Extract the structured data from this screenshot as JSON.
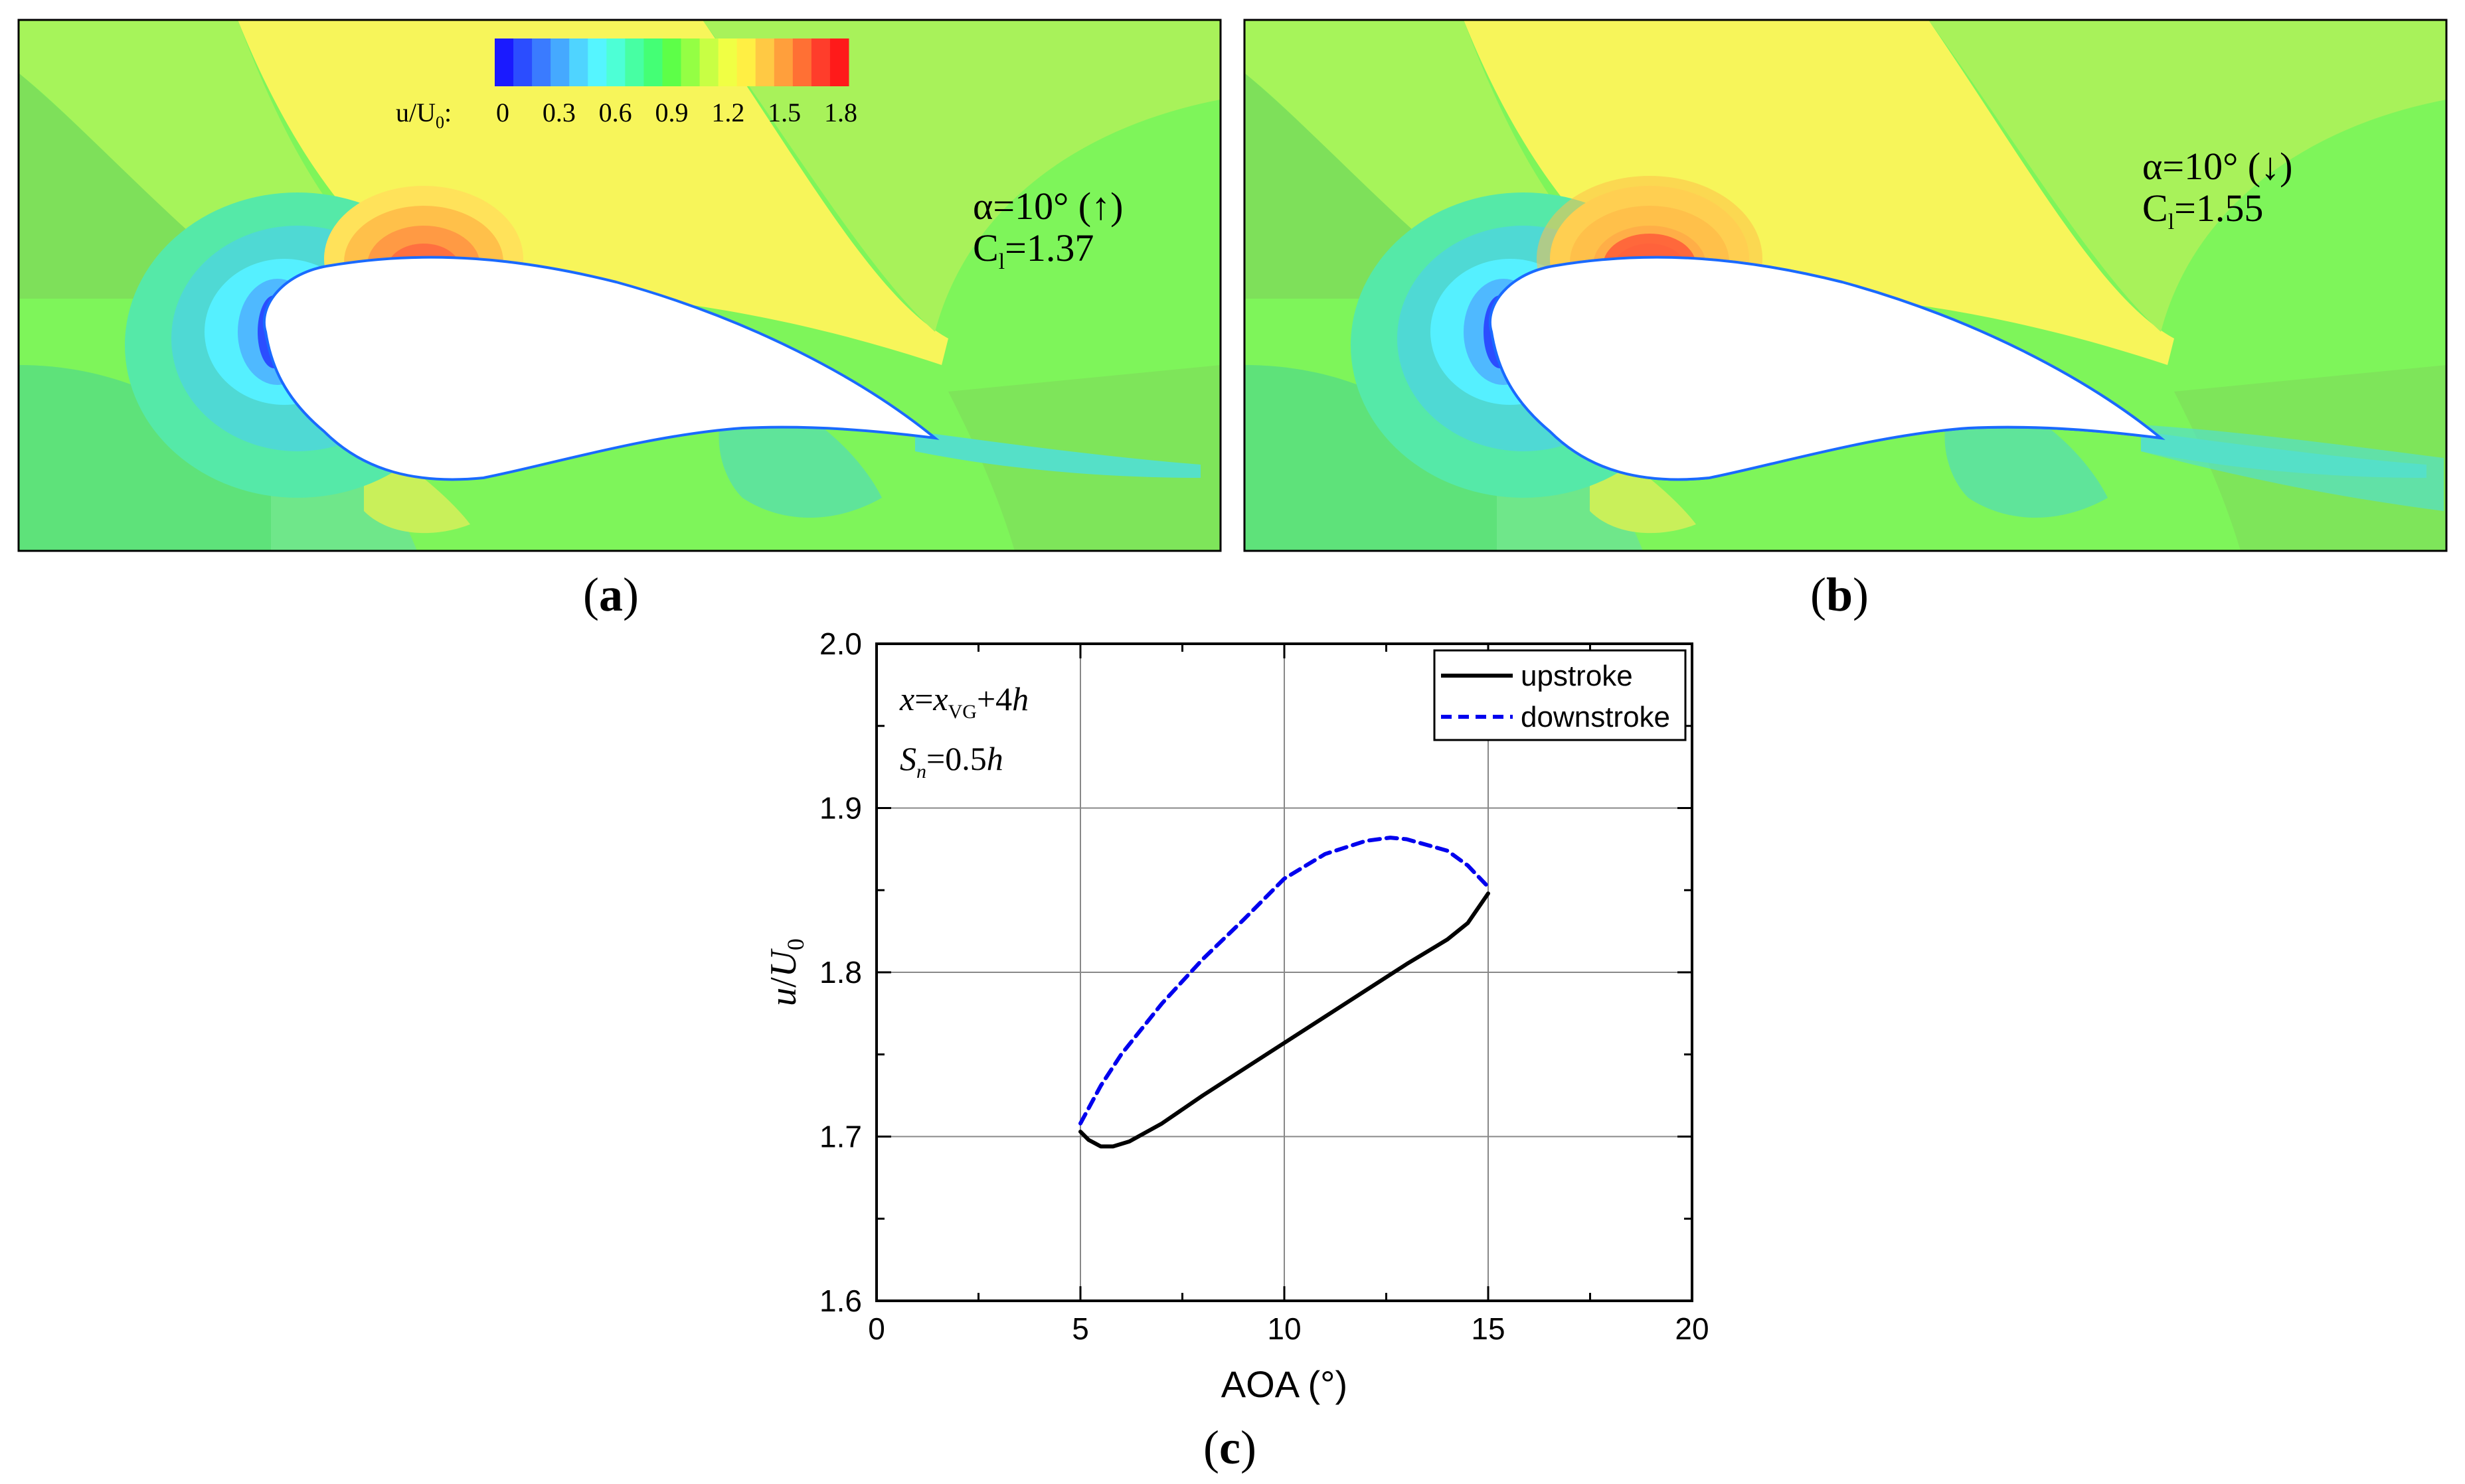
{
  "panel_a": {
    "caption_open": "(",
    "caption_letter": "a",
    "caption_close": ")",
    "alpha_label": "α=10° (↑)",
    "cl_prefix": "C",
    "cl_sub": "l",
    "cl_value": "=1.37"
  },
  "panel_b": {
    "caption_open": "(",
    "caption_letter": "b",
    "caption_close": ")",
    "alpha_label": "α=10° (↓)",
    "cl_prefix": "C",
    "cl_sub": "l",
    "cl_value": "=1.55"
  },
  "panel_c": {
    "caption_open": "(",
    "caption_letter": "c",
    "caption_close": ")"
  },
  "colorbar": {
    "label_main": "u/U",
    "label_sub": "0",
    "label_colon": ":",
    "ticks": [
      "0",
      "0.3",
      "0.6",
      "0.9",
      "1.2",
      "1.5",
      "1.8"
    ],
    "colors": [
      "#1a1aff",
      "#2b4dff",
      "#3a7bff",
      "#45a9ff",
      "#4fd4ff",
      "#55f5ff",
      "#4dffd6",
      "#47ffa3",
      "#44ff75",
      "#5dff48",
      "#94ff44",
      "#c8ff44",
      "#f0ff44",
      "#ffef44",
      "#ffc944",
      "#ff9f3c",
      "#ff7034",
      "#ff3d2b",
      "#ff1a1a"
    ]
  },
  "chart_data": {
    "type": "line",
    "x": {
      "label": "AOA (°)",
      "lim": [
        0,
        20
      ],
      "ticks": [
        0,
        5,
        10,
        15,
        20
      ]
    },
    "y": {
      "label_italic": "u",
      "label_mid": "/",
      "label_italic2": "U",
      "label_sub": "0",
      "lim": [
        1.6,
        2.0
      ],
      "ticks": [
        1.6,
        1.7,
        1.8,
        1.9,
        2.0
      ],
      "tick_labels": [
        "1.6",
        "1.7",
        "1.8",
        "1.9",
        "2.0"
      ]
    },
    "grid_x": [
      5,
      10,
      15
    ],
    "grid_y": [
      1.7,
      1.8,
      1.9
    ],
    "annotation": {
      "line1_x": "x",
      "line1_eq": "=",
      "line1_xvg": "x",
      "line1_vg_sub": "VG",
      "line1_rest": "+4",
      "line1_h": "h",
      "line2_s": "S",
      "line2_n": "n",
      "line2_rest": "=0.5",
      "line2_h": "h"
    },
    "legend_position": "top-right",
    "series": [
      {
        "name": "upstroke",
        "style": "solid",
        "color": "#000000",
        "x": [
          5.0,
          5.2,
          5.5,
          5.8,
          6.2,
          7.0,
          8.0,
          9.0,
          10.0,
          11.0,
          12.0,
          13.0,
          14.0,
          14.5,
          15.0
        ],
        "y": [
          1.703,
          1.698,
          1.694,
          1.694,
          1.697,
          1.708,
          1.725,
          1.741,
          1.757,
          1.773,
          1.789,
          1.805,
          1.82,
          1.83,
          1.848
        ]
      },
      {
        "name": "downstroke",
        "style": "dashed",
        "color": "#0000ee",
        "x": [
          5.0,
          5.5,
          6.0,
          7.0,
          8.0,
          9.0,
          10.0,
          11.0,
          12.0,
          12.6,
          13.0,
          14.0,
          14.5,
          15.0
        ],
        "y": [
          1.708,
          1.731,
          1.75,
          1.781,
          1.808,
          1.832,
          1.857,
          1.872,
          1.88,
          1.882,
          1.881,
          1.874,
          1.865,
          1.852
        ]
      }
    ]
  }
}
